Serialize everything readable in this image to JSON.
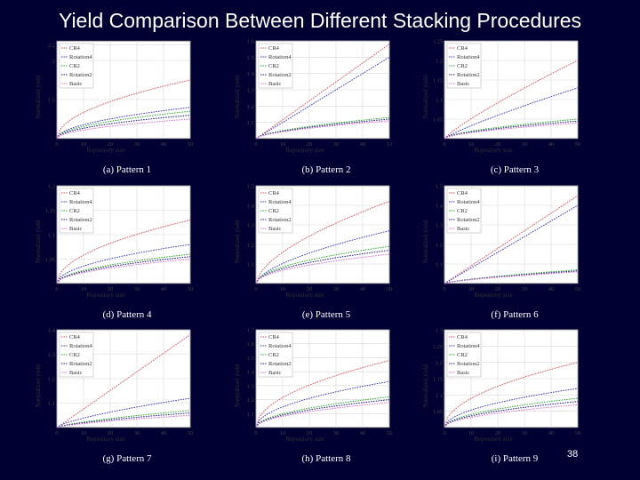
{
  "slide": {
    "title": "Yield Comparison Between Different Stacking Procedures",
    "page_number": "38"
  },
  "colors": {
    "CR4": "#e8505a",
    "Rotation4": "#3a3ad8",
    "CR2": "#30b030",
    "Rotation2": "#202088",
    "Basic": "#e070d8"
  },
  "chart_data": [
    {
      "type": "line",
      "caption": "(a) Pattern 1",
      "xlabel": "Repository size",
      "ylabel": "Normalized yield",
      "xlim": [
        0,
        50
      ],
      "ylim": [
        1,
        2.25
      ],
      "xticks": [
        "0",
        "10",
        "20",
        "30",
        "40",
        "50"
      ],
      "yticks": [
        {
          "v": 1.5,
          "t": "1.5"
        },
        {
          "v": 2,
          "t": "2"
        },
        {
          "v": 2.2,
          "t": "2.2"
        }
      ],
      "series": [
        {
          "name": "CR4",
          "end": 1.75,
          "exp": 0.5
        },
        {
          "name": "Rotation4",
          "end": 1.4,
          "exp": 0.5
        },
        {
          "name": "CR2",
          "end": 1.35,
          "exp": 0.5
        },
        {
          "name": "Rotation2",
          "end": 1.3,
          "exp": 0.5
        },
        {
          "name": "Basic",
          "end": 1.25,
          "exp": 0.5
        }
      ]
    },
    {
      "type": "line",
      "caption": "(b) Pattern 2",
      "xlabel": "Repository size",
      "ylabel": "Normalized yield",
      "xlim": [
        0,
        53
      ],
      "ylim": [
        1,
        1.6
      ],
      "xticks": [
        "0",
        "10",
        "20",
        "30",
        "40",
        "53"
      ],
      "yticks": [
        {
          "v": 1.1,
          "t": "1.1"
        },
        {
          "v": 1.2,
          "t": "1.2"
        },
        {
          "v": 1.3,
          "t": "1.3"
        },
        {
          "v": 1.4,
          "t": "1.4"
        },
        {
          "v": 1.5,
          "t": "1.5"
        },
        {
          "v": 1.6,
          "t": "1.6"
        }
      ],
      "series": [
        {
          "name": "CR4",
          "end": 1.58,
          "exp": 1
        },
        {
          "name": "Rotation4",
          "end": 1.5,
          "exp": 1
        },
        {
          "name": "CR2",
          "end": 1.13,
          "exp": 0.6
        },
        {
          "name": "Rotation2",
          "end": 1.12,
          "exp": 0.6
        },
        {
          "name": "Basic",
          "end": 1.11,
          "exp": 0.6
        }
      ]
    },
    {
      "type": "line",
      "caption": "(c) Pattern 3",
      "xlabel": "Repository size",
      "ylabel": "Normalized yield",
      "xlim": [
        0,
        50
      ],
      "ylim": [
        1,
        1.25
      ],
      "xticks": [
        "0",
        "10",
        "20",
        "30",
        "40",
        "50"
      ],
      "yticks": [
        {
          "v": 1.05,
          "t": "1.05"
        },
        {
          "v": 1.1,
          "t": "1.1"
        },
        {
          "v": 1.15,
          "t": "1.15"
        },
        {
          "v": 1.2,
          "t": "1.2"
        },
        {
          "v": 1.25,
          "t": "1.25"
        }
      ],
      "series": [
        {
          "name": "CR4",
          "end": 1.2,
          "exp": 0.85
        },
        {
          "name": "Rotation4",
          "end": 1.13,
          "exp": 0.85
        },
        {
          "name": "CR2",
          "end": 1.05,
          "exp": 0.6
        },
        {
          "name": "Rotation2",
          "end": 1.045,
          "exp": 0.6
        },
        {
          "name": "Basic",
          "end": 1.04,
          "exp": 0.6
        }
      ]
    },
    {
      "type": "line",
      "caption": "(d) Pattern 4",
      "xlabel": "Repository size",
      "ylabel": "Normalized yield",
      "xlim": [
        0,
        50
      ],
      "ylim": [
        1,
        1.2
      ],
      "xticks": [
        "0",
        "10",
        "20",
        "30",
        "40",
        "50"
      ],
      "yticks": [
        {
          "v": 1.05,
          "t": "1.05"
        },
        {
          "v": 1.1,
          "t": "1.1"
        },
        {
          "v": 1.15,
          "t": "1.15"
        },
        {
          "v": 1.2,
          "t": "1.2"
        }
      ],
      "series": [
        {
          "name": "CR4",
          "end": 1.13,
          "exp": 0.5
        },
        {
          "name": "Rotation4",
          "end": 1.08,
          "exp": 0.5
        },
        {
          "name": "CR2",
          "end": 1.06,
          "exp": 0.5
        },
        {
          "name": "Rotation2",
          "end": 1.055,
          "exp": 0.5
        },
        {
          "name": "Basic",
          "end": 1.05,
          "exp": 0.5
        }
      ]
    },
    {
      "type": "line",
      "caption": "(e) Pattern 5",
      "xlabel": "Repository size",
      "ylabel": "Normalized yield",
      "xlim": [
        0,
        50
      ],
      "ylim": [
        1,
        1.5
      ],
      "xticks": [
        "0",
        "10",
        "20",
        "30",
        "40",
        "50"
      ],
      "yticks": [
        {
          "v": 1.1,
          "t": "1.1"
        },
        {
          "v": 1.2,
          "t": "1.2"
        },
        {
          "v": 1.3,
          "t": "1.3"
        },
        {
          "v": 1.4,
          "t": "1.4"
        },
        {
          "v": 1.5,
          "t": "1.5"
        }
      ],
      "series": [
        {
          "name": "CR4",
          "end": 1.42,
          "exp": 0.6
        },
        {
          "name": "Rotation4",
          "end": 1.27,
          "exp": 0.6
        },
        {
          "name": "CR2",
          "end": 1.19,
          "exp": 0.5
        },
        {
          "name": "Rotation2",
          "end": 1.17,
          "exp": 0.5
        },
        {
          "name": "Basic",
          "end": 1.15,
          "exp": 0.5
        }
      ]
    },
    {
      "type": "line",
      "caption": "(f) Pattern 6",
      "xlabel": "Repository size",
      "ylabel": "Normalized yield",
      "xlim": [
        0,
        50
      ],
      "ylim": [
        1,
        1.5
      ],
      "xticks": [
        "0",
        "10",
        "20",
        "30",
        "40",
        "50"
      ],
      "yticks": [
        {
          "v": 1.1,
          "t": "1.1"
        },
        {
          "v": 1.2,
          "t": "1.2"
        },
        {
          "v": 1.3,
          "t": "1.3"
        },
        {
          "v": 1.4,
          "t": "1.4"
        },
        {
          "v": 1.5,
          "t": "1.5"
        }
      ],
      "series": [
        {
          "name": "CR4",
          "end": 1.45,
          "exp": 1
        },
        {
          "name": "Rotation4",
          "end": 1.4,
          "exp": 1
        },
        {
          "name": "CR2",
          "end": 1.07,
          "exp": 0.7
        },
        {
          "name": "Rotation2",
          "end": 1.065,
          "exp": 0.7
        },
        {
          "name": "Basic",
          "end": 1.06,
          "exp": 0.7
        }
      ]
    },
    {
      "type": "line",
      "caption": "(g) Pattern 7",
      "xlabel": "Repository size",
      "ylabel": "Normalized yield",
      "xlim": [
        0,
        50
      ],
      "ylim": [
        1,
        1.4
      ],
      "xticks": [
        "0",
        "10",
        "20",
        "30",
        "40",
        "50"
      ],
      "yticks": [
        {
          "v": 1.1,
          "t": "1.1"
        },
        {
          "v": 1.2,
          "t": "1.2"
        },
        {
          "v": 1.3,
          "t": "1.3"
        },
        {
          "v": 1.4,
          "t": "1.4"
        }
      ],
      "series": [
        {
          "name": "CR4",
          "end": 1.38,
          "exp": 1
        },
        {
          "name": "Rotation4",
          "end": 1.12,
          "exp": 0.7
        },
        {
          "name": "CR2",
          "end": 1.07,
          "exp": 0.7
        },
        {
          "name": "Rotation2",
          "end": 1.06,
          "exp": 0.7
        },
        {
          "name": "Basic",
          "end": 1.05,
          "exp": 0.7
        }
      ]
    },
    {
      "type": "line",
      "caption": "(h) Pattern 8",
      "xlabel": "Repository size",
      "ylabel": "Normalized yield",
      "xlim": [
        0,
        50
      ],
      "ylim": [
        1,
        1.7
      ],
      "xticks": [
        "0",
        "10",
        "20",
        "30",
        "40",
        "50"
      ],
      "yticks": [
        {
          "v": 1.1,
          "t": "1.1"
        },
        {
          "v": 1.2,
          "t": "1.2"
        },
        {
          "v": 1.3,
          "t": "1.3"
        },
        {
          "v": 1.4,
          "t": "1.4"
        },
        {
          "v": 1.5,
          "t": "1.5"
        },
        {
          "v": 1.6,
          "t": "1.6"
        },
        {
          "v": 1.7,
          "t": "1.7"
        }
      ],
      "series": [
        {
          "name": "CR4",
          "end": 1.48,
          "exp": 0.5
        },
        {
          "name": "Rotation4",
          "end": 1.33,
          "exp": 0.5
        },
        {
          "name": "CR2",
          "end": 1.22,
          "exp": 0.5
        },
        {
          "name": "Rotation2",
          "end": 1.2,
          "exp": 0.5
        },
        {
          "name": "Basic",
          "end": 1.18,
          "exp": 0.5
        }
      ]
    },
    {
      "type": "line",
      "caption": "(i) Pattern 9",
      "xlabel": "Repository size",
      "ylabel": "Normalized yield",
      "xlim": [
        0,
        50
      ],
      "ylim": [
        1,
        1.3
      ],
      "xticks": [
        "0",
        "10",
        "20",
        "30",
        "40",
        "50"
      ],
      "yticks": [
        {
          "v": 1.05,
          "t": "1.05"
        },
        {
          "v": 1.1,
          "t": "1.1"
        },
        {
          "v": 1.15,
          "t": "1.15"
        },
        {
          "v": 1.2,
          "t": "1.2"
        },
        {
          "v": 1.25,
          "t": "1.25"
        },
        {
          "v": 1.3,
          "t": "1.3"
        }
      ],
      "series": [
        {
          "name": "CR4",
          "end": 1.2,
          "exp": 0.5
        },
        {
          "name": "Rotation4",
          "end": 1.12,
          "exp": 0.5
        },
        {
          "name": "CR2",
          "end": 1.09,
          "exp": 0.5
        },
        {
          "name": "Rotation2",
          "end": 1.08,
          "exp": 0.5
        },
        {
          "name": "Basic",
          "end": 1.07,
          "exp": 0.5
        }
      ]
    }
  ]
}
